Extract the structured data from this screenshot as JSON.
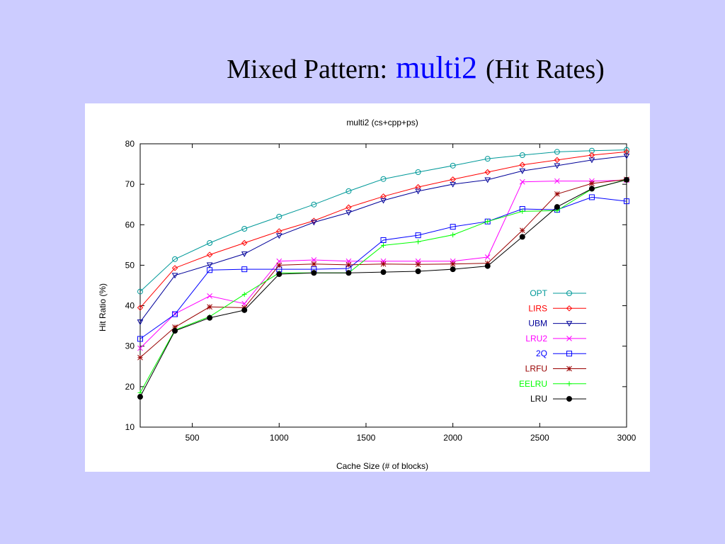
{
  "slide": {
    "title_prefix": "Mixed Pattern:",
    "title_accent": "multi2",
    "title_suffix": "(Hit Rates)",
    "accent_color": "#0000ff",
    "background": "#ccccff"
  },
  "chart_data": {
    "type": "line",
    "title": "multi2 (cs+cpp+ps)",
    "xlabel": "Cache Size (# of blocks)",
    "ylabel": "Hit Ratio (%)",
    "xlim": [
      200,
      3000
    ],
    "ylim": [
      10,
      80
    ],
    "xticks": [
      500,
      1000,
      1500,
      2000,
      2500,
      3000
    ],
    "yticks": [
      10,
      20,
      30,
      40,
      50,
      60,
      70,
      80
    ],
    "grid": false,
    "legend_position": "bottom-right",
    "x": [
      200,
      400,
      600,
      800,
      1000,
      1200,
      1400,
      1600,
      1800,
      2000,
      2200,
      2400,
      2600,
      2800,
      3000
    ],
    "series": [
      {
        "name": "OPT",
        "color": "#009999",
        "marker": "circle",
        "values": [
          43.5,
          51.5,
          55.5,
          59,
          62,
          65,
          68.3,
          71.3,
          73,
          74.6,
          76.3,
          77.2,
          78,
          78.3,
          78.5
        ]
      },
      {
        "name": "LIRS",
        "color": "#ff0000",
        "marker": "diamond",
        "values": [
          39.5,
          49.3,
          52.6,
          55.5,
          58.4,
          61,
          64.3,
          67,
          69.3,
          71.2,
          73,
          74.8,
          76,
          77.2,
          78
        ]
      },
      {
        "name": "UBM",
        "color": "#000099",
        "marker": "triangle",
        "values": [
          36,
          47.5,
          50.1,
          52.8,
          57.3,
          60.6,
          63,
          66,
          68.3,
          70,
          71.1,
          73.3,
          74.6,
          76,
          77
        ]
      },
      {
        "name": "LRU2",
        "color": "#ff00ff",
        "marker": "x",
        "values": [
          29.5,
          38,
          42.4,
          40.5,
          51,
          51.3,
          51,
          51,
          51,
          51,
          52,
          70.6,
          70.8,
          70.8,
          71
        ]
      },
      {
        "name": "2Q",
        "color": "#0000ff",
        "marker": "square",
        "values": [
          31.8,
          37.9,
          48.8,
          49,
          49,
          49,
          49.2,
          56.2,
          57.4,
          59.5,
          60.8,
          63.9,
          63.7,
          66.8,
          65.8
        ]
      },
      {
        "name": "LRFU",
        "color": "#990000",
        "marker": "star",
        "values": [
          27.2,
          34.7,
          39.7,
          39.5,
          50,
          50.3,
          50.1,
          50.3,
          50.2,
          50.3,
          50.5,
          58.6,
          67.6,
          70.2,
          71.2
        ]
      },
      {
        "name": "EELRU",
        "color": "#00ff00",
        "marker": "plus",
        "values": [
          18.5,
          34,
          37.3,
          42.8,
          48.1,
          48.1,
          48.1,
          54.9,
          55.8,
          57.5,
          60.8,
          63.3,
          63.5,
          68.8,
          71.2
        ]
      },
      {
        "name": "LRU",
        "color": "#000000",
        "marker": "dot",
        "values": [
          17.5,
          33.8,
          37,
          38.9,
          47.8,
          48.1,
          48.1,
          48.3,
          48.5,
          49,
          49.8,
          57,
          64.4,
          68.9,
          71.1
        ]
      }
    ]
  }
}
